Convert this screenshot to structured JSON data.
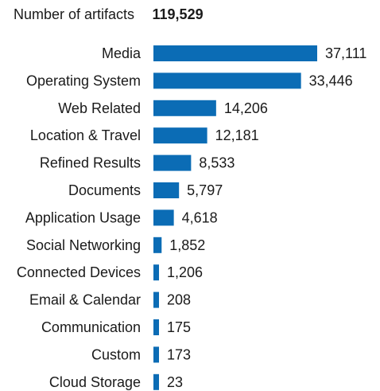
{
  "header": {
    "label": "Number of artifacts",
    "total": "119,529"
  },
  "colors": {
    "bar": "#0b6cb5",
    "text": "#1a1a1a"
  },
  "chart_data": {
    "type": "bar",
    "orientation": "horizontal",
    "title": "",
    "xlabel": "",
    "ylabel": "",
    "grid": false,
    "categories": [
      "Media",
      "Operating System",
      "Web Related",
      "Location & Travel",
      "Refined Results",
      "Documents",
      "Application Usage",
      "Social Networking",
      "Connected Devices",
      "Email & Calendar",
      "Communication",
      "Custom",
      "Cloud Storage"
    ],
    "values": [
      37111,
      33446,
      14206,
      12181,
      8533,
      5797,
      4618,
      1852,
      1206,
      208,
      175,
      173,
      23
    ],
    "value_labels": [
      "37,111",
      "33,446",
      "14,206",
      "12,181",
      "8,533",
      "5,797",
      "4,618",
      "1,852",
      "1,206",
      "208",
      "175",
      "173",
      "23"
    ]
  }
}
